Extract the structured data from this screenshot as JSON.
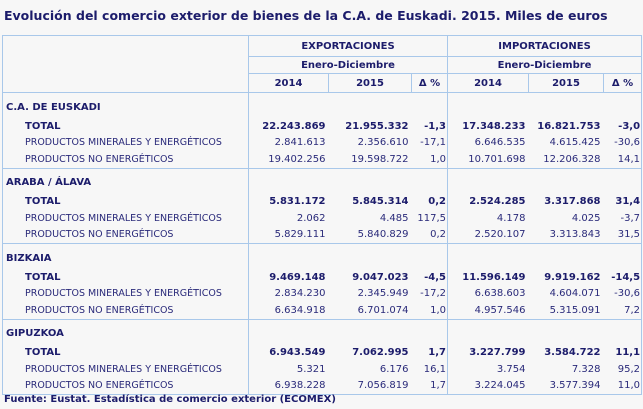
{
  "title": "Evolución del comercio exterior de bienes de la C.A. de Euskadi. 2015. Miles de euros",
  "headers": {
    "exports": "EXPORTACIONES",
    "imports": "IMPORTACIONES",
    "period": "Enero-Diciembre",
    "years": [
      "2014",
      "2015",
      "Δ %"
    ]
  },
  "sections": [
    {
      "region": "C.A. DE EUSKADI",
      "rows": [
        {
          "label": "TOTAL",
          "values": [
            "22.243.869",
            "21.955.332",
            "-1,3",
            "17.348.233",
            "16.821.753",
            "-3,0"
          ]
        },
        {
          "label": "PRODUCTOS MINERALES Y ENERGÉTICOS",
          "values": [
            "2.841.613",
            "2.356.610",
            "-17,1",
            "6.646.535",
            "4.615.425",
            "-30,6"
          ]
        },
        {
          "label": "PRODUCTOS NO ENERGÉTICOS",
          "values": [
            "19.402.256",
            "19.598.722",
            "1,0",
            "10.701.698",
            "12.206.328",
            "14,1"
          ]
        }
      ]
    },
    {
      "region": "ARABA / ÁLAVA",
      "rows": [
        {
          "label": "TOTAL",
          "values": [
            "5.831.172",
            "5.845.314",
            "0,2",
            "2.524.285",
            "3.317.868",
            "31,4"
          ]
        },
        {
          "label": "PRODUCTOS MINERALES Y ENERGÉTICOS",
          "values": [
            "2.062",
            "4.485",
            "117,5",
            "4.178",
            "4.025",
            "-3,7"
          ]
        },
        {
          "label": "PRODUCTOS NO ENERGÉTICOS",
          "values": [
            "5.829.111",
            "5.840.829",
            "0,2",
            "2.520.107",
            "3.313.843",
            "31,5"
          ]
        }
      ]
    },
    {
      "region": "BIZKAIA",
      "rows": [
        {
          "label": "TOTAL",
          "values": [
            "9.469.148",
            "9.047.023",
            "-4,5",
            "11.596.149",
            "9.919.162",
            "-14,5"
          ]
        },
        {
          "label": "PRODUCTOS MINERALES Y ENERGÉTICOS",
          "values": [
            "2.834.230",
            "2.345.949",
            "-17,2",
            "6.638.603",
            "4.604.071",
            "-30,6"
          ]
        },
        {
          "label": "PRODUCTOS NO ENERGÉTICOS",
          "values": [
            "6.634.918",
            "6.701.074",
            "1,0",
            "4.957.546",
            "5.315.091",
            "7,2"
          ]
        }
      ]
    },
    {
      "region": "GIPUZKOA",
      "rows": [
        {
          "label": "TOTAL",
          "values": [
            "6.943.549",
            "7.062.995",
            "1,7",
            "3.227.799",
            "3.584.722",
            "11,1"
          ]
        },
        {
          "label": "PRODUCTOS MINERALES Y ENERGÉTICOS",
          "values": [
            "5.321",
            "6.176",
            "16,1",
            "3.754",
            "7.328",
            "95,2"
          ]
        },
        {
          "label": "PRODUCTOS NO ENERGÉTICOS",
          "values": [
            "6.938.228",
            "7.056.819",
            "1,7",
            "3.224.045",
            "3.577.394",
            "11,0"
          ]
        }
      ]
    }
  ],
  "source": "Fuente: Eustat. Estadística de comercio exterior (ECOMEX)",
  "colors": {
    "text": "#1c1c6b",
    "border": "#a9c8ea",
    "background": "#f7f7f7"
  }
}
